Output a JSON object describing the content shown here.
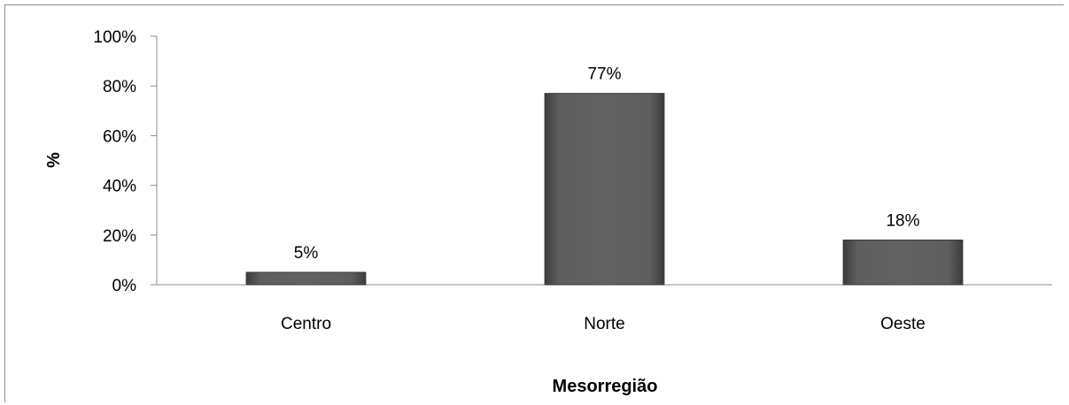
{
  "chart_data": {
    "type": "bar",
    "categories": [
      "Centro",
      "Norte",
      "Oeste"
    ],
    "values": [
      5,
      77,
      18
    ],
    "data_labels": [
      "5%",
      "77%",
      "18%"
    ],
    "ylim": [
      0,
      100
    ],
    "yticks": [
      0,
      20,
      40,
      60,
      80,
      100
    ],
    "ytick_labels": [
      "0%",
      "20%",
      "40%",
      "60%",
      "80%",
      "100%"
    ],
    "xlabel": "Mesorregião",
    "ylabel": "%",
    "grid": false,
    "legend": "none",
    "bar_color": "#5a5a5a"
  }
}
